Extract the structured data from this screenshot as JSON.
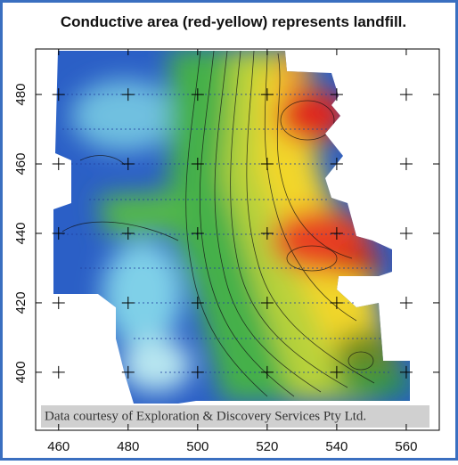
{
  "chart_data": {
    "type": "contour",
    "title": "Conductive area (red-yellow) represents landfill.",
    "note": "Data courtesy of Exploration & Discovery Services Pty Ltd.",
    "xlim": [
      453.4,
      569.5
    ],
    "xticks": [
      460,
      480,
      500,
      520,
      540,
      560
    ],
    "ylim": [
      383.3,
      493.1
    ],
    "yticks": [
      400,
      420,
      440,
      460,
      480
    ],
    "grid": true
  }
}
